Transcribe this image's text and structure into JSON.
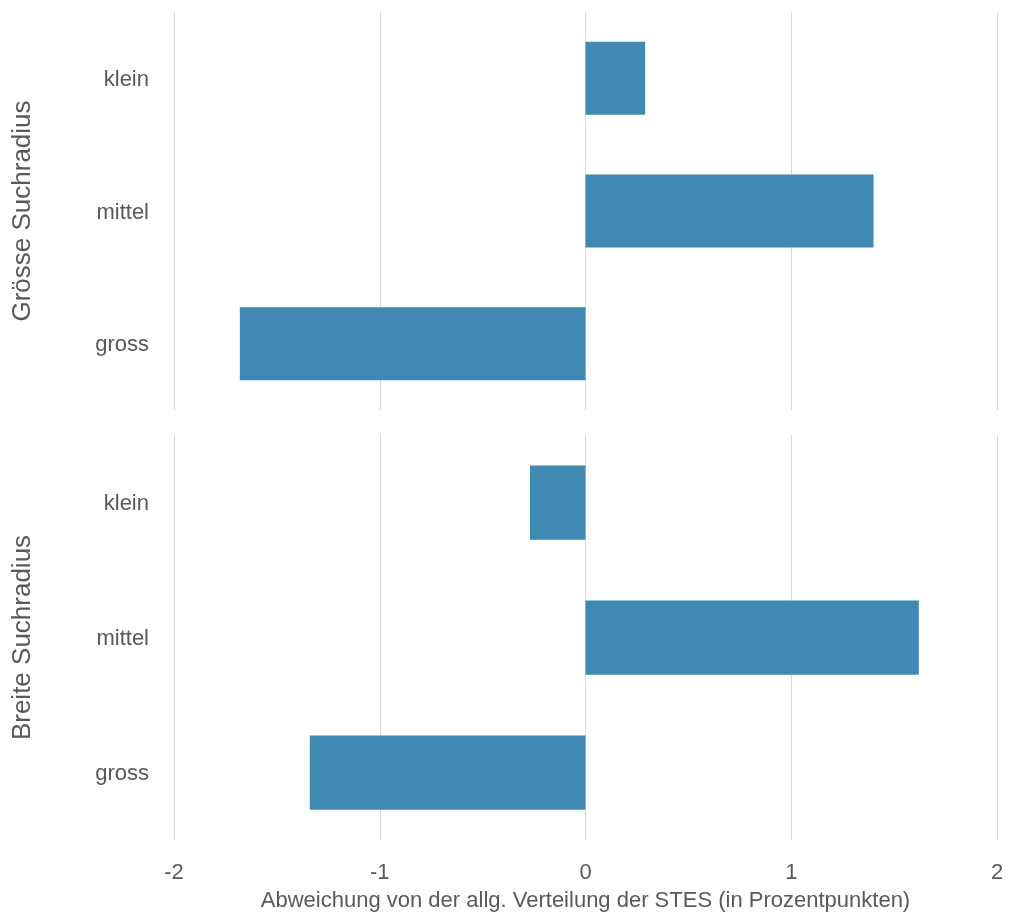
{
  "chart_data": [
    {
      "type": "bar",
      "orientation": "horizontal",
      "ylabel": "Grösse Suchradius",
      "categories": [
        "klein",
        "mittel",
        "gross"
      ],
      "series": [
        {
          "color": "#3f89b3",
          "values": [
            0.29,
            1.4,
            -1.68
          ]
        }
      ],
      "xlim": [
        -2,
        2
      ],
      "xticks": [
        -2,
        -1,
        0,
        1,
        2
      ],
      "grid": "x",
      "tick_labels": "y"
    },
    {
      "type": "bar",
      "orientation": "horizontal",
      "ylabel": "Breite Suchradius",
      "xlabel": "Abweichung von der allg. Verteilung der STES (in Prozentpunkten)",
      "categories": [
        "klein",
        "mittel",
        "gross"
      ],
      "series": [
        {
          "color": "#3f89b3",
          "values": [
            -0.27,
            1.62,
            -1.34
          ]
        }
      ],
      "xlim": [
        -2,
        2
      ],
      "xticks": [
        -2,
        -1,
        0,
        1,
        2
      ],
      "grid": "x"
    }
  ]
}
